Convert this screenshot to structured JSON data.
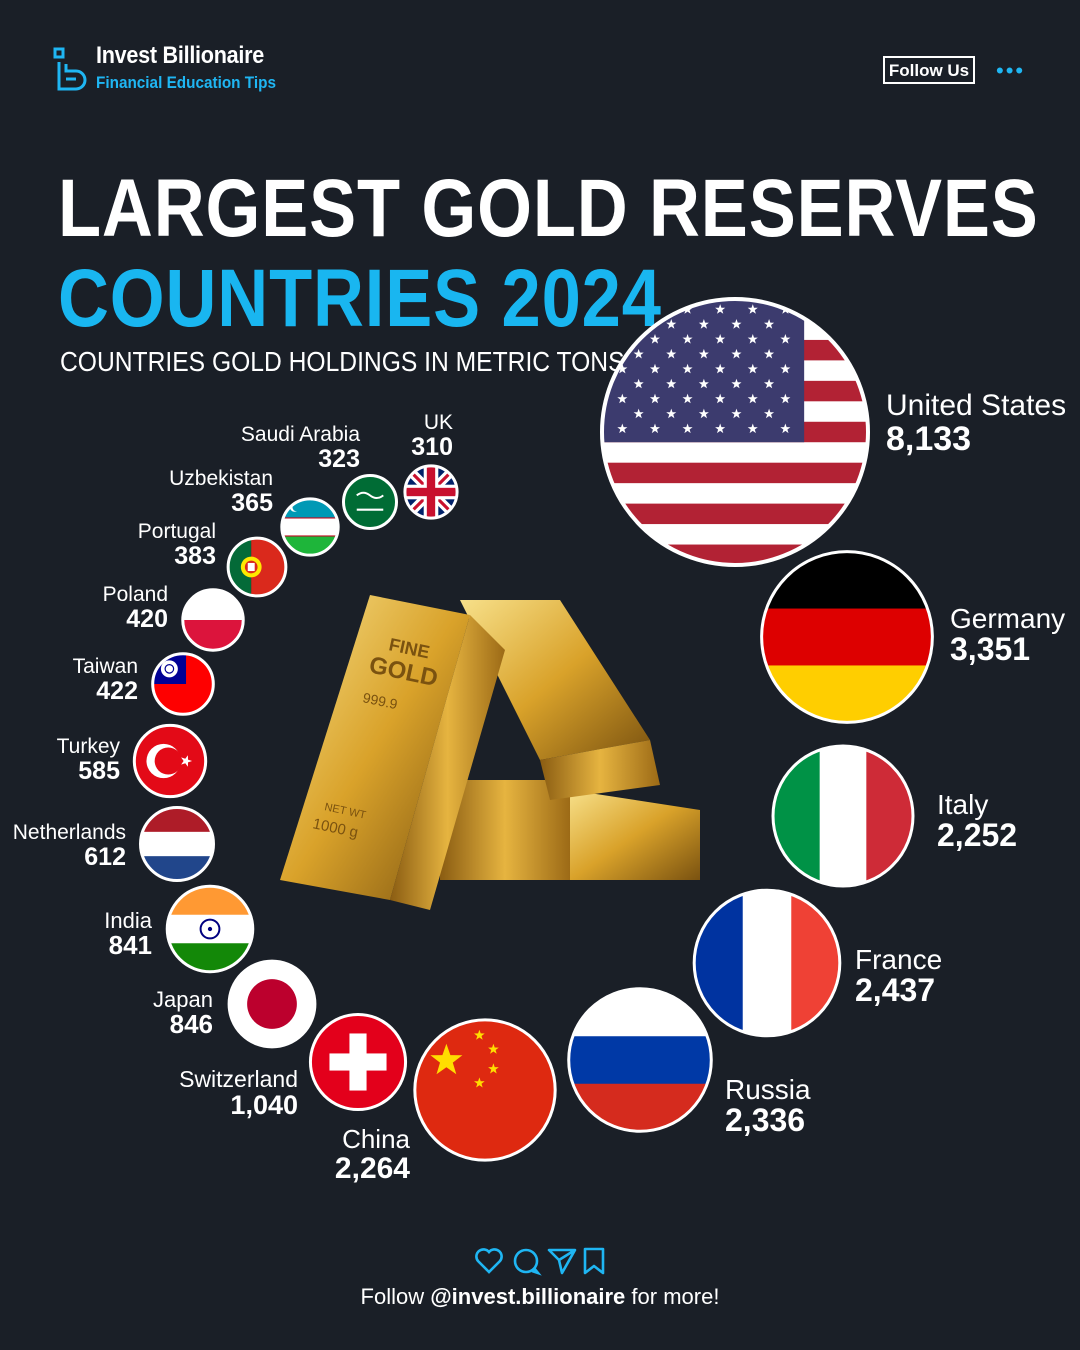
{
  "brand": {
    "name": "Invest Billionaire",
    "tagline": "Financial Education Tips"
  },
  "header": {
    "follow_label": "Follow Us",
    "more_label": "•••"
  },
  "title": {
    "line1": "LARGEST GOLD RESERVES",
    "line2": "COUNTRIES 2024",
    "subtitle": "COUNTRIES GOLD HOLDINGS IN METRIC TONS"
  },
  "colors": {
    "background": "#1a1f27",
    "accent": "#1fb6f3",
    "gold": "#d9a22a"
  },
  "chart_data": {
    "type": "bubble",
    "title": "LARGEST GOLD RESERVES COUNTRIES 2024",
    "subtitle": "COUNTRIES GOLD HOLDINGS IN METRIC TONS",
    "unit": "metric tons",
    "categories": [
      "United States",
      "Germany",
      "Italy",
      "France",
      "Russia",
      "China",
      "Switzerland",
      "Japan",
      "India",
      "Netherlands",
      "Turkey",
      "Taiwan",
      "Poland",
      "Portugal",
      "Uzbekistan",
      "Saudi Arabia",
      "UK"
    ],
    "values": [
      8133,
      3351,
      2252,
      2437,
      2336,
      2264,
      1040,
      846,
      841,
      612,
      585,
      422,
      420,
      383,
      365,
      323,
      310
    ],
    "value_labels": [
      "8,133",
      "3,351",
      "2,252",
      "2,437",
      "2,336",
      "2,264",
      "1,040",
      "846",
      "841",
      "612",
      "585",
      "422",
      "420",
      "383",
      "365",
      "323",
      "310"
    ],
    "flag_icons": [
      "us-flag-icon",
      "germany-flag-icon",
      "italy-flag-icon",
      "france-flag-icon",
      "russia-flag-icon",
      "china-flag-icon",
      "switzerland-flag-icon",
      "japan-flag-icon",
      "india-flag-icon",
      "netherlands-flag-icon",
      "turkey-flag-icon",
      "taiwan-flag-icon",
      "poland-flag-icon",
      "portugal-flag-icon",
      "uzbekistan-flag-icon",
      "saudi-arabia-flag-icon",
      "uk-flag-icon"
    ]
  },
  "gold_bars": {
    "bar_text_1": "FINE",
    "bar_text_2": "GOLD",
    "purity": "999.9",
    "net_wt": "NET WT",
    "weight": "1000 g"
  },
  "footer": {
    "prefix": "Follow",
    "handle": "@invest.billionaire",
    "suffix": "for more!"
  }
}
